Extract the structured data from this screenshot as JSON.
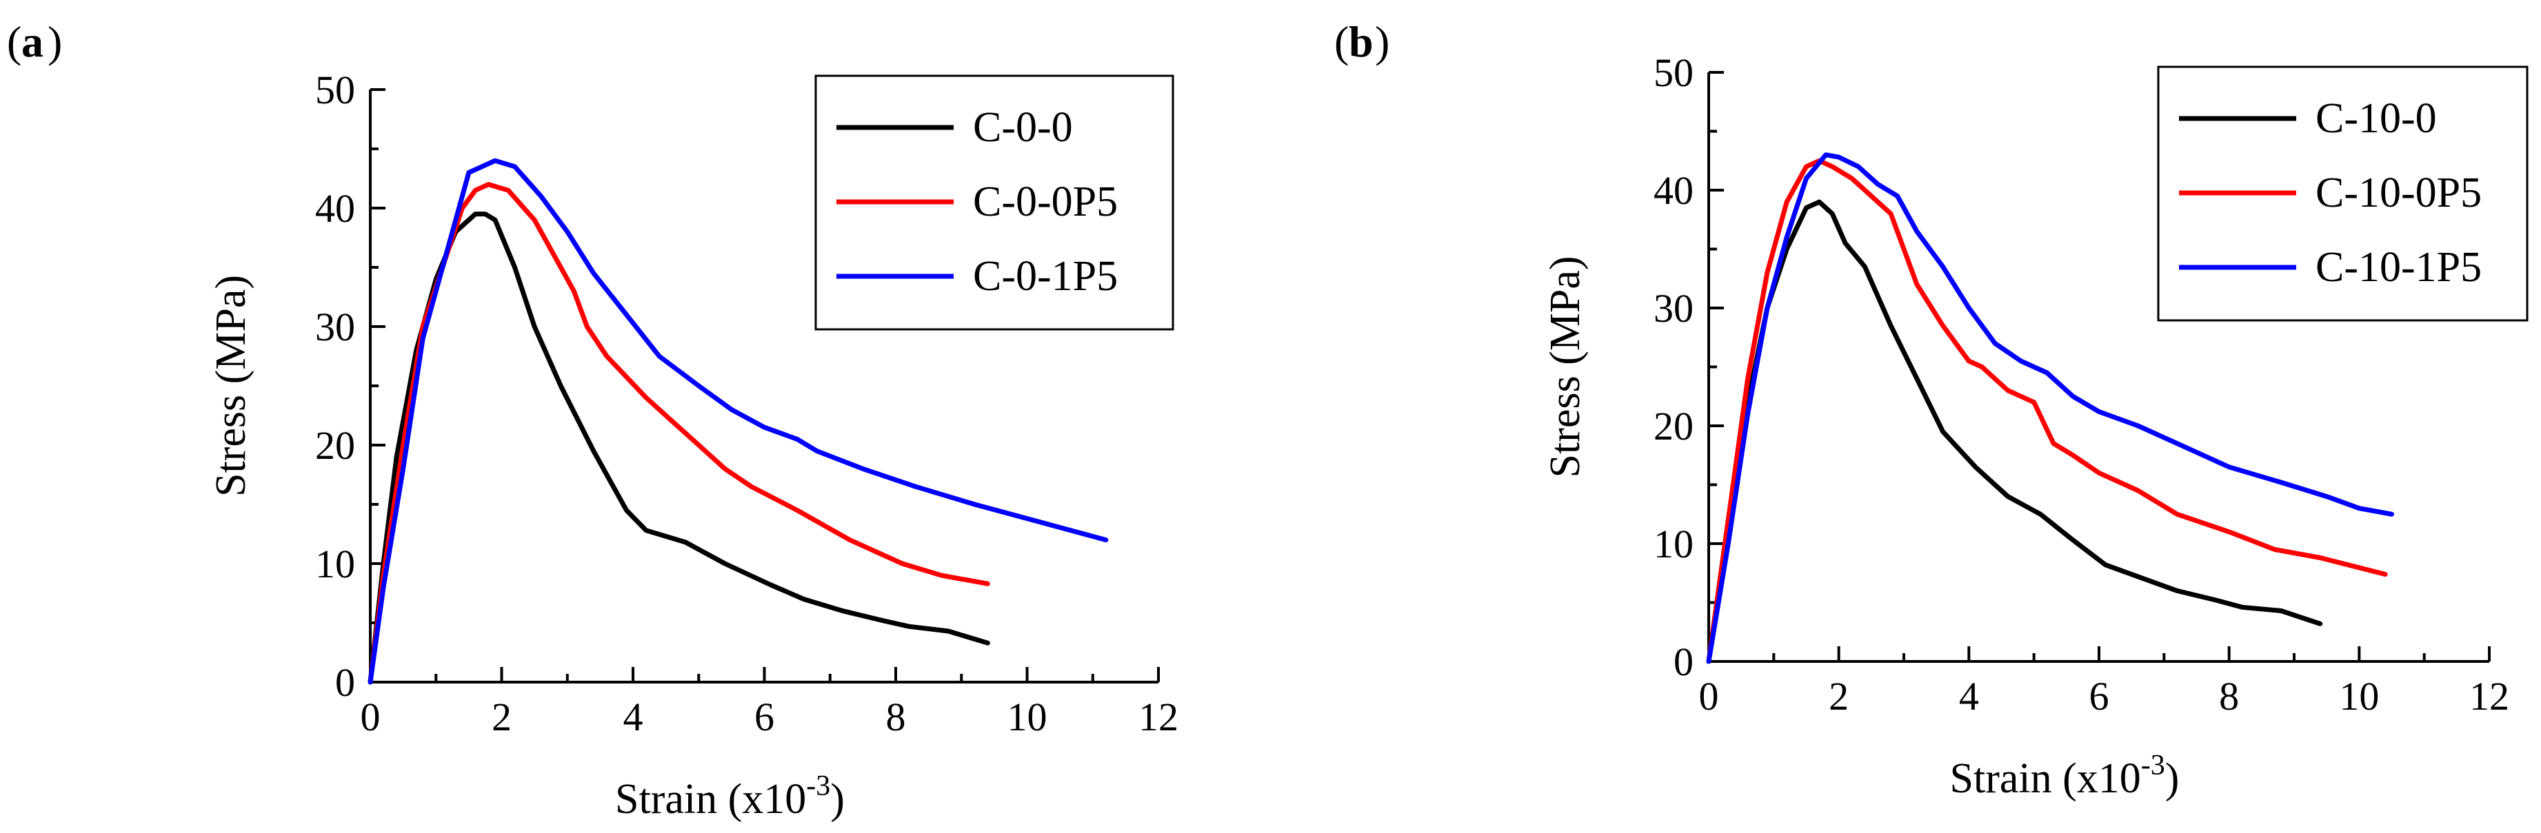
{
  "chart_data": [
    {
      "type": "line",
      "panel_label": "a",
      "xlabel": "Strain (x10",
      "xlabel_exponent": "-3",
      "xlabel_suffix": ")",
      "ylabel": "Stress (MPa)",
      "xlim": [
        0,
        12
      ],
      "ylim": [
        0,
        50
      ],
      "xticks": [
        "0",
        "2",
        "4",
        "6",
        "8",
        "10",
        "12"
      ],
      "yticks": [
        "0",
        "10",
        "20",
        "30",
        "40",
        "50"
      ],
      "legend_position": "top-right",
      "series": [
        {
          "name": "C-0-0",
          "color": "#000000",
          "x": [
            0,
            0.2,
            0.4,
            0.7,
            1.0,
            1.3,
            1.6,
            1.75,
            1.9,
            2.2,
            2.5,
            2.9,
            3.4,
            3.9,
            4.2,
            4.8,
            5.4,
            6.1,
            6.6,
            7.2,
            7.8,
            8.2,
            8.8,
            9.4
          ],
          "y": [
            0,
            10,
            19,
            28,
            34,
            38,
            39.5,
            39.5,
            39,
            35,
            30,
            25,
            19.5,
            14.5,
            12.8,
            11.8,
            10,
            8.2,
            7,
            6,
            5.2,
            4.7,
            4.3,
            3.3
          ]
        },
        {
          "name": "C-0-0P5",
          "color": "#ff0000",
          "x": [
            0,
            0.2,
            0.5,
            0.8,
            1.1,
            1.4,
            1.6,
            1.8,
            2.1,
            2.5,
            2.8,
            3.1,
            3.3,
            3.6,
            4.2,
            4.6,
            5.0,
            5.4,
            5.8,
            6.5,
            7.3,
            8.1,
            8.7,
            9.4
          ],
          "y": [
            0,
            9,
            20,
            30,
            35,
            40,
            41.5,
            42,
            41.5,
            39,
            36,
            33,
            30,
            27.5,
            24,
            22,
            20,
            18,
            16.5,
            14.5,
            12,
            10,
            9,
            8.3
          ]
        },
        {
          "name": "C-0-1P5",
          "color": "#0000ff",
          "x": [
            0,
            0.2,
            0.5,
            0.8,
            1.1,
            1.5,
            1.9,
            2.2,
            2.6,
            3.0,
            3.4,
            3.9,
            4.4,
            5.0,
            5.5,
            6.0,
            6.5,
            6.8,
            7.5,
            8.3,
            9.2,
            10.2,
            11.2
          ],
          "y": [
            0,
            8,
            18,
            29,
            35,
            43,
            44,
            43.5,
            41,
            38,
            34.5,
            31,
            27.5,
            25,
            23,
            21.5,
            20.5,
            19.5,
            18,
            16.5,
            15,
            13.5,
            12
          ]
        }
      ]
    },
    {
      "type": "line",
      "panel_label": "b",
      "xlabel": "Strain (x10",
      "xlabel_exponent": "-3",
      "xlabel_suffix": ")",
      "ylabel": "Stress (MPa)",
      "xlim": [
        0,
        12
      ],
      "ylim": [
        0,
        50
      ],
      "xticks": [
        "0",
        "2",
        "4",
        "6",
        "8",
        "10",
        "12"
      ],
      "yticks": [
        "0",
        "10",
        "20",
        "30",
        "40",
        "50"
      ],
      "legend_position": "top-right",
      "series": [
        {
          "name": "C-10-0",
          "color": "#000000",
          "x": [
            0,
            0.3,
            0.6,
            0.9,
            1.2,
            1.5,
            1.7,
            1.9,
            2.1,
            2.4,
            2.8,
            3.2,
            3.6,
            4.1,
            4.6,
            5.1,
            5.6,
            6.1,
            6.6,
            7.2,
            7.8,
            8.2,
            8.8,
            9.4
          ],
          "y": [
            0,
            12,
            22,
            30,
            35,
            38.5,
            39,
            38,
            35.5,
            33.5,
            28.5,
            24,
            19.5,
            16.5,
            14,
            12.5,
            10.3,
            8.2,
            7.2,
            6,
            5.2,
            4.6,
            4.3,
            3.2
          ]
        },
        {
          "name": "C-10-0P5",
          "color": "#ff0000",
          "x": [
            0,
            0.3,
            0.6,
            0.9,
            1.2,
            1.5,
            1.7,
            1.9,
            2.2,
            2.5,
            2.8,
            3.2,
            3.6,
            4.0,
            4.2,
            4.6,
            5.0,
            5.3,
            5.6,
            6.0,
            6.6,
            7.2,
            8.0,
            8.7,
            9.4,
            10.4
          ],
          "y": [
            0,
            12,
            24,
            33,
            39,
            42,
            42.5,
            42,
            41,
            39.5,
            38,
            32,
            28.5,
            25.5,
            25,
            23,
            22,
            18.5,
            17.5,
            16,
            14.5,
            12.5,
            11,
            9.5,
            8.8,
            7.4
          ]
        },
        {
          "name": "C-10-1P5",
          "color": "#0000ff",
          "x": [
            0,
            0.3,
            0.6,
            0.9,
            1.2,
            1.5,
            1.8,
            2.0,
            2.3,
            2.6,
            2.9,
            3.2,
            3.6,
            4.0,
            4.4,
            4.8,
            5.2,
            5.6,
            6.0,
            6.6,
            7.2,
            8.0,
            8.8,
            9.5,
            10.0,
            10.5
          ],
          "y": [
            0,
            10,
            21,
            30,
            36,
            41,
            43,
            42.8,
            42,
            40.5,
            39.5,
            36.5,
            33.5,
            30,
            27,
            25.5,
            24.5,
            22.5,
            21.2,
            20,
            18.5,
            16.5,
            15.2,
            14,
            13,
            12.5
          ]
        }
      ]
    }
  ]
}
